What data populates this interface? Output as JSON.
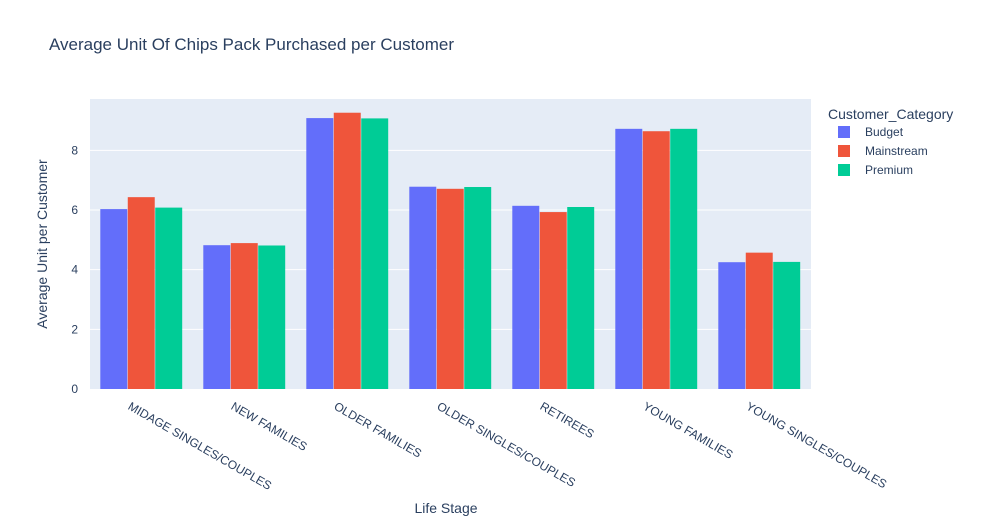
{
  "chart_data": {
    "type": "bar",
    "title": "Average Unit Of Chips Pack Purchased per Customer",
    "xlabel": "Life Stage",
    "ylabel": "Average Unit per Customer",
    "legend_title": "Customer_Category",
    "legend_position": "top-right",
    "grid": true,
    "ylim": [
      0,
      9.72
    ],
    "yticks": [
      0,
      2,
      4,
      6,
      8
    ],
    "categories": [
      "MIDAGE SINGLES/COUPLES",
      "NEW FAMILIES",
      "OLDER FAMILIES",
      "OLDER SINGLES/COUPLES",
      "RETIREES",
      "YOUNG FAMILIES",
      "YOUNG SINGLES/COUPLES"
    ],
    "series": [
      {
        "name": "Budget",
        "color": "#636efa",
        "values": [
          6.03,
          4.82,
          9.08,
          6.78,
          6.14,
          8.72,
          4.25
        ]
      },
      {
        "name": "Mainstream",
        "color": "#ef553b",
        "values": [
          6.43,
          4.89,
          9.26,
          6.71,
          5.93,
          8.64,
          4.57
        ]
      },
      {
        "name": "Premium",
        "color": "#00cc96",
        "values": [
          6.08,
          4.81,
          9.07,
          6.77,
          6.1,
          8.72,
          4.26
        ]
      }
    ]
  }
}
